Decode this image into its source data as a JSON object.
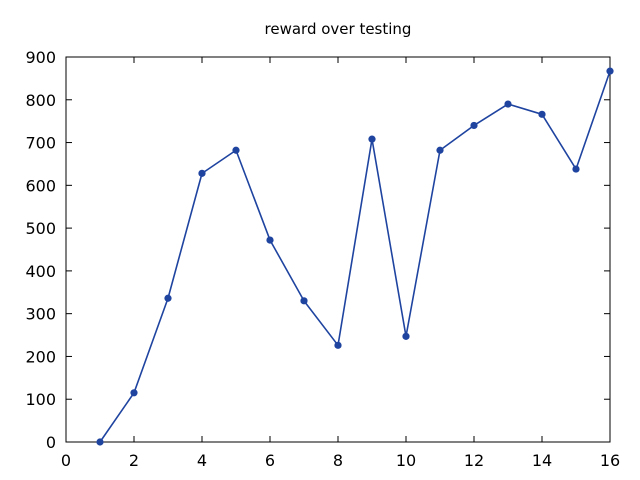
{
  "chart_data": {
    "type": "line",
    "title": "reward over testing",
    "xlabel": "",
    "ylabel": "",
    "xlim": [
      0,
      16
    ],
    "ylim": [
      0,
      900
    ],
    "xticks": [
      0,
      2,
      4,
      6,
      8,
      10,
      12,
      14,
      16
    ],
    "yticks": [
      0,
      100,
      200,
      300,
      400,
      500,
      600,
      700,
      800,
      900
    ],
    "grid": false,
    "series": [
      {
        "color": "#1f44a0",
        "marker": "circle",
        "x": [
          1,
          2,
          3,
          4,
          5,
          6,
          7,
          8,
          9,
          10,
          11,
          12,
          13,
          14,
          15,
          16
        ],
        "y": [
          0,
          115,
          336,
          628,
          682,
          472,
          330,
          226,
          708,
          247,
          682,
          740,
          790,
          766,
          638,
          867
        ]
      }
    ]
  }
}
